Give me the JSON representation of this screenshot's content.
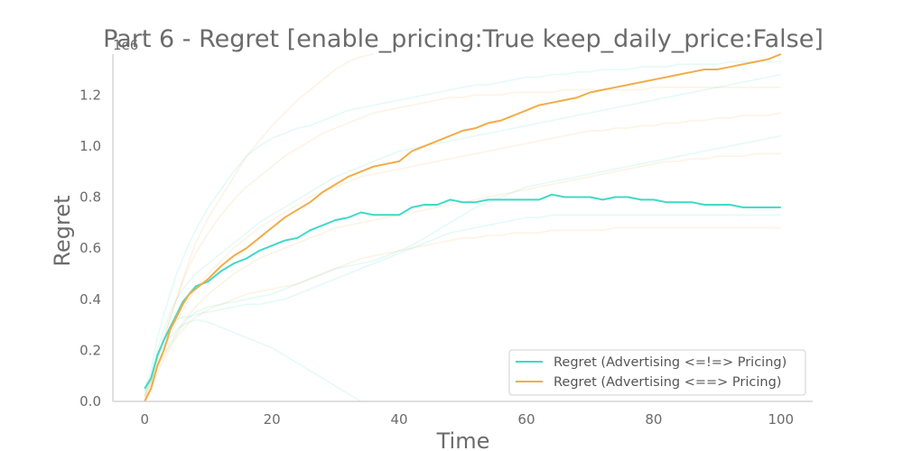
{
  "chart_data": {
    "type": "line",
    "title": "Part 6 - Regret [enable_pricing:True keep_daily_price:False]",
    "xlabel": "Time",
    "ylabel": "Regret",
    "y_offset_label": "1e6",
    "xlim": [
      -5,
      105
    ],
    "ylim": [
      0,
      1.36
    ],
    "xticks": [
      0,
      20,
      40,
      60,
      80,
      100
    ],
    "yticks": [
      0.0,
      0.2,
      0.4,
      0.6,
      0.8,
      1.0,
      1.2
    ],
    "ytick_labels": [
      "0.0",
      "0.2",
      "0.4",
      "0.6",
      "0.8",
      "1.0",
      "1.2"
    ],
    "grid": false,
    "legend_position": "lower-right",
    "x": [
      0,
      1,
      2,
      3,
      4,
      5,
      6,
      7,
      8,
      10,
      12,
      14,
      16,
      18,
      20,
      22,
      24,
      26,
      28,
      30,
      32,
      34,
      36,
      38,
      40,
      42,
      44,
      46,
      48,
      50,
      52,
      54,
      56,
      58,
      60,
      62,
      64,
      66,
      68,
      70,
      72,
      74,
      76,
      78,
      80,
      82,
      84,
      86,
      88,
      90,
      92,
      94,
      96,
      98,
      100
    ],
    "series": [
      {
        "name": "Regret (Advertising <=!=> Pricing)",
        "color": "#40d9c6",
        "values": [
          0.05,
          0.09,
          0.18,
          0.24,
          0.29,
          0.34,
          0.39,
          0.42,
          0.45,
          0.47,
          0.51,
          0.54,
          0.56,
          0.59,
          0.61,
          0.63,
          0.64,
          0.67,
          0.69,
          0.71,
          0.72,
          0.74,
          0.73,
          0.73,
          0.73,
          0.76,
          0.77,
          0.77,
          0.79,
          0.78,
          0.78,
          0.79,
          0.79,
          0.79,
          0.79,
          0.79,
          0.81,
          0.8,
          0.8,
          0.8,
          0.79,
          0.8,
          0.8,
          0.79,
          0.79,
          0.78,
          0.78,
          0.78,
          0.77,
          0.77,
          0.77,
          0.76,
          0.76,
          0.76,
          0.76
        ]
      },
      {
        "name": "Regret (Advertising <==> Pricing)",
        "color": "#f2ac47",
        "values": [
          0.0,
          0.05,
          0.14,
          0.2,
          0.28,
          0.33,
          0.38,
          0.42,
          0.44,
          0.48,
          0.53,
          0.57,
          0.6,
          0.64,
          0.68,
          0.72,
          0.75,
          0.78,
          0.82,
          0.85,
          0.88,
          0.9,
          0.92,
          0.93,
          0.94,
          0.98,
          1.0,
          1.02,
          1.04,
          1.06,
          1.07,
          1.09,
          1.1,
          1.12,
          1.14,
          1.16,
          1.17,
          1.18,
          1.19,
          1.21,
          1.22,
          1.23,
          1.24,
          1.25,
          1.26,
          1.27,
          1.28,
          1.29,
          1.3,
          1.3,
          1.31,
          1.32,
          1.33,
          1.34,
          1.36
        ]
      }
    ],
    "background_runs": [
      {
        "color": "#40d9c6",
        "values": [
          0.05,
          0.12,
          0.25,
          0.34,
          0.42,
          0.5,
          0.56,
          0.62,
          0.67,
          0.76,
          0.83,
          0.9,
          0.96,
          1.0,
          1.03,
          1.05,
          1.07,
          1.08,
          1.1,
          1.12,
          1.14,
          1.15,
          1.16,
          1.17,
          1.18,
          1.19,
          1.2,
          1.21,
          1.22,
          1.23,
          1.24,
          1.24,
          1.25,
          1.26,
          1.27,
          1.27,
          1.28,
          1.28,
          1.29,
          1.29,
          1.3,
          1.3,
          1.3,
          1.31,
          1.31,
          1.31,
          1.32,
          1.32,
          1.32,
          1.32,
          1.33,
          1.33,
          1.33,
          1.33,
          1.33
        ]
      },
      {
        "color": "#40d9c6",
        "values": [
          0.03,
          0.09,
          0.18,
          0.24,
          0.29,
          0.32,
          0.33,
          0.33,
          0.34,
          0.35,
          0.36,
          0.37,
          0.38,
          0.38,
          0.39,
          0.4,
          0.42,
          0.44,
          0.46,
          0.48,
          0.5,
          0.52,
          0.54,
          0.56,
          0.58,
          0.6,
          0.62,
          0.64,
          0.66,
          0.67,
          0.68,
          0.69,
          0.7,
          0.71,
          0.72,
          0.72,
          0.73,
          0.73,
          0.73,
          0.73,
          0.73,
          0.73,
          0.73,
          0.73,
          0.73,
          0.73,
          0.73,
          0.73,
          0.73,
          0.73,
          0.73,
          0.73,
          0.73,
          0.73,
          0.73
        ]
      },
      {
        "color": "#40d9c6",
        "values": [
          0.04,
          0.1,
          0.17,
          0.22,
          0.25,
          0.28,
          0.3,
          0.31,
          0.32,
          0.31,
          0.29,
          0.27,
          0.25,
          0.23,
          0.21,
          0.18,
          0.15,
          0.12,
          0.09,
          0.06,
          0.03,
          0.0,
          null,
          null,
          null,
          null,
          null,
          null,
          null,
          null,
          null,
          null,
          null,
          null,
          null,
          null,
          null,
          null,
          null,
          null,
          null,
          null,
          null,
          null,
          null,
          null,
          null,
          null,
          null,
          null,
          null,
          null,
          null,
          null,
          null
        ]
      },
      {
        "color": "#40d9c6",
        "values": [
          0.04,
          0.08,
          0.14,
          0.18,
          0.22,
          0.26,
          0.3,
          0.33,
          0.35,
          0.37,
          0.38,
          0.39,
          0.4,
          0.41,
          0.42,
          0.44,
          0.46,
          0.48,
          0.5,
          0.52,
          0.53,
          0.54,
          0.55,
          0.57,
          0.59,
          0.61,
          0.64,
          0.67,
          0.7,
          0.73,
          0.76,
          0.78,
          0.8,
          0.82,
          0.84,
          0.85,
          0.86,
          0.87,
          0.88,
          0.89,
          0.9,
          0.91,
          0.92,
          0.93,
          0.94,
          0.95,
          0.96,
          0.97,
          0.98,
          0.99,
          1.0,
          1.01,
          1.02,
          1.03,
          1.04
        ]
      },
      {
        "color": "#40d9c6",
        "values": [
          0.05,
          0.1,
          0.2,
          0.28,
          0.35,
          0.4,
          0.44,
          0.47,
          0.5,
          0.54,
          0.58,
          0.62,
          0.66,
          0.7,
          0.73,
          0.76,
          0.79,
          0.82,
          0.85,
          0.88,
          0.9,
          0.92,
          0.94,
          0.96,
          0.98,
          0.99,
          1.0,
          1.01,
          1.02,
          1.03,
          1.04,
          1.05,
          1.06,
          1.07,
          1.08,
          1.09,
          1.1,
          1.11,
          1.12,
          1.13,
          1.14,
          1.15,
          1.16,
          1.17,
          1.18,
          1.19,
          1.2,
          1.21,
          1.22,
          1.23,
          1.24,
          1.25,
          1.26,
          1.27,
          1.28
        ]
      },
      {
        "color": "#f2ac47",
        "values": [
          0.02,
          0.08,
          0.16,
          0.24,
          0.32,
          0.4,
          0.48,
          0.55,
          0.62,
          0.72,
          0.8,
          0.88,
          0.96,
          1.02,
          1.08,
          1.13,
          1.18,
          1.22,
          1.26,
          1.3,
          1.33,
          1.35,
          1.36,
          null,
          null,
          null,
          null,
          null,
          null,
          null,
          null,
          null,
          null,
          null,
          null,
          null,
          null,
          null,
          null,
          null,
          null,
          null,
          null,
          null,
          null,
          null,
          null,
          null,
          null,
          null,
          null,
          null,
          null,
          null,
          null
        ]
      },
      {
        "color": "#f2ac47",
        "values": [
          0.01,
          0.05,
          0.11,
          0.16,
          0.21,
          0.25,
          0.28,
          0.31,
          0.33,
          0.36,
          0.38,
          0.4,
          0.42,
          0.43,
          0.44,
          0.45,
          0.46,
          0.48,
          0.5,
          0.52,
          0.54,
          0.56,
          0.57,
          0.58,
          0.59,
          0.6,
          0.61,
          0.62,
          0.63,
          0.64,
          0.64,
          0.65,
          0.65,
          0.66,
          0.66,
          0.66,
          0.67,
          0.67,
          0.67,
          0.67,
          0.67,
          0.68,
          0.68,
          0.68,
          0.68,
          0.68,
          0.68,
          0.68,
          0.68,
          0.68,
          0.68,
          0.68,
          0.68,
          0.68,
          0.68
        ]
      },
      {
        "color": "#f2ac47",
        "values": [
          0.02,
          0.07,
          0.14,
          0.2,
          0.26,
          0.31,
          0.36,
          0.4,
          0.44,
          0.5,
          0.55,
          0.6,
          0.64,
          0.68,
          0.71,
          0.74,
          0.77,
          0.8,
          0.82,
          0.84,
          0.86,
          0.88,
          0.89,
          0.9,
          0.91,
          0.92,
          0.93,
          0.94,
          0.95,
          0.96,
          0.97,
          0.98,
          0.99,
          1.0,
          1.01,
          1.02,
          1.03,
          1.04,
          1.05,
          1.06,
          1.06,
          1.07,
          1.07,
          1.08,
          1.08,
          1.09,
          1.09,
          1.1,
          1.1,
          1.11,
          1.11,
          1.12,
          1.12,
          1.12,
          1.13
        ]
      },
      {
        "color": "#f2ac47",
        "values": [
          0.01,
          0.06,
          0.13,
          0.18,
          0.23,
          0.27,
          0.31,
          0.34,
          0.37,
          0.42,
          0.46,
          0.5,
          0.53,
          0.56,
          0.58,
          0.6,
          0.62,
          0.64,
          0.66,
          0.68,
          0.69,
          0.7,
          0.71,
          0.72,
          0.73,
          0.74,
          0.75,
          0.76,
          0.77,
          0.78,
          0.79,
          0.8,
          0.81,
          0.82,
          0.83,
          0.84,
          0.85,
          0.86,
          0.87,
          0.88,
          0.89,
          0.9,
          0.91,
          0.92,
          0.93,
          0.94,
          0.94,
          0.95,
          0.95,
          0.96,
          0.96,
          0.96,
          0.97,
          0.97,
          0.97
        ]
      },
      {
        "color": "#f2ac47",
        "values": [
          0.02,
          0.08,
          0.17,
          0.25,
          0.33,
          0.4,
          0.47,
          0.53,
          0.58,
          0.66,
          0.73,
          0.79,
          0.84,
          0.88,
          0.92,
          0.96,
          0.99,
          1.02,
          1.05,
          1.07,
          1.09,
          1.11,
          1.13,
          1.14,
          1.15,
          1.16,
          1.17,
          1.18,
          1.19,
          1.19,
          1.2,
          1.2,
          1.2,
          1.21,
          1.21,
          1.21,
          1.21,
          1.22,
          1.22,
          1.22,
          1.22,
          1.22,
          1.22,
          1.22,
          1.23,
          1.23,
          1.23,
          1.23,
          1.23,
          1.23,
          1.23,
          1.23,
          1.23,
          1.23,
          1.23
        ]
      }
    ]
  }
}
